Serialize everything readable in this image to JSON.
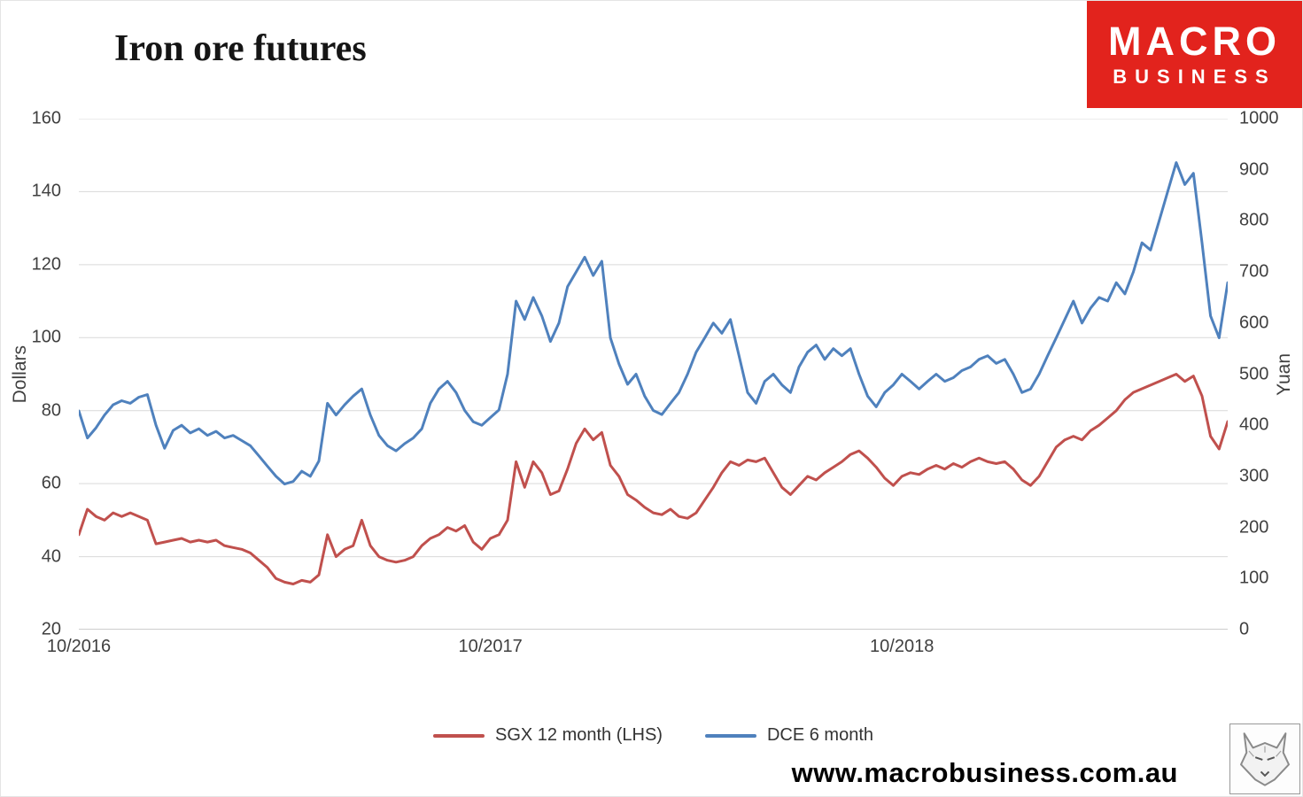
{
  "logo": {
    "line1": "MACRO",
    "line2": "BUSINESS",
    "bg_color": "#e2231d"
  },
  "footer": {
    "website": "www.macrobusiness.com.au"
  },
  "chart_data": {
    "type": "line",
    "title": "Iron ore futures",
    "grid": true,
    "legend_position": "bottom",
    "x_axis": {
      "total_months": 33.5,
      "ticks": [
        {
          "label": "10/2016",
          "month": 0
        },
        {
          "label": "10/2017",
          "month": 12
        },
        {
          "label": "10/2018",
          "month": 24
        }
      ]
    },
    "left_axis": {
      "label": "Dollars",
      "min": 20,
      "max": 160,
      "ticks": [
        160,
        140,
        120,
        100,
        80,
        60,
        40,
        20
      ]
    },
    "right_axis": {
      "label": "Yuan",
      "min": 0,
      "max": 1000,
      "ticks": [
        1000,
        900,
        800,
        700,
        600,
        500,
        400,
        300,
        200,
        100,
        0
      ]
    },
    "series": [
      {
        "name": "SGX 12 month (LHS)",
        "axis": "left",
        "color": "#c0504d",
        "values": [
          46,
          53,
          51,
          50,
          52,
          51,
          52,
          51,
          50,
          43.5,
          44,
          44.5,
          45,
          44,
          44.5,
          44,
          44.5,
          43,
          42.5,
          42,
          41,
          39,
          37,
          34,
          33,
          32.5,
          33.5,
          33,
          35,
          46,
          40,
          42,
          43,
          50,
          43,
          40,
          39,
          38.5,
          39,
          40,
          43,
          45,
          46,
          48,
          47,
          48.5,
          44,
          42,
          45,
          46,
          50,
          66,
          59,
          66,
          63,
          57,
          58,
          64,
          71,
          75,
          72,
          74,
          65,
          62,
          57,
          55.5,
          53.5,
          52,
          51.5,
          53,
          51,
          50.5,
          52,
          55.5,
          59,
          63,
          66,
          65,
          66.5,
          66,
          67,
          63,
          59,
          57,
          59.5,
          62,
          61,
          63,
          64.5,
          66,
          68,
          69,
          67,
          64.5,
          61.5,
          59.5,
          62,
          63,
          62.5,
          64,
          65,
          64,
          65.5,
          64.5,
          66,
          67,
          66,
          65.5,
          66,
          64,
          61,
          59.5,
          62,
          66,
          70,
          72,
          73,
          72,
          74.5,
          76,
          78,
          80,
          83,
          85,
          86,
          87,
          88,
          89,
          90,
          88,
          89.5,
          84,
          73,
          69.5,
          77
        ]
      },
      {
        "name": "DCE 6 month",
        "axis": "right",
        "color": "#4f81bd",
        "values": [
          428,
          375,
          395,
          420,
          440,
          448,
          443,
          455,
          460,
          400,
          355,
          390,
          400,
          385,
          393,
          380,
          388,
          375,
          380,
          370,
          360,
          340,
          320,
          300,
          285,
          290,
          310,
          300,
          330,
          443,
          420,
          440,
          457,
          471,
          420,
          380,
          360,
          350,
          364,
          375,
          393,
          443,
          471,
          486,
          464,
          429,
          407,
          400,
          415,
          430,
          500,
          643,
          607,
          650,
          614,
          564,
          600,
          671,
          700,
          729,
          693,
          721,
          571,
          520,
          480,
          500,
          457,
          429,
          421,
          443,
          464,
          500,
          543,
          571,
          600,
          580,
          607,
          536,
          464,
          443,
          486,
          500,
          479,
          464,
          514,
          543,
          557,
          529,
          550,
          536,
          550,
          500,
          457,
          436,
          464,
          479,
          500,
          486,
          471,
          486,
          500,
          486,
          493,
          507,
          514,
          529,
          536,
          521,
          529,
          500,
          464,
          471,
          500,
          536,
          571,
          607,
          643,
          600,
          629,
          650,
          643,
          679,
          657,
          700,
          757,
          743,
          800,
          857,
          914,
          871,
          893,
          757,
          614,
          571,
          679
        ]
      }
    ]
  }
}
